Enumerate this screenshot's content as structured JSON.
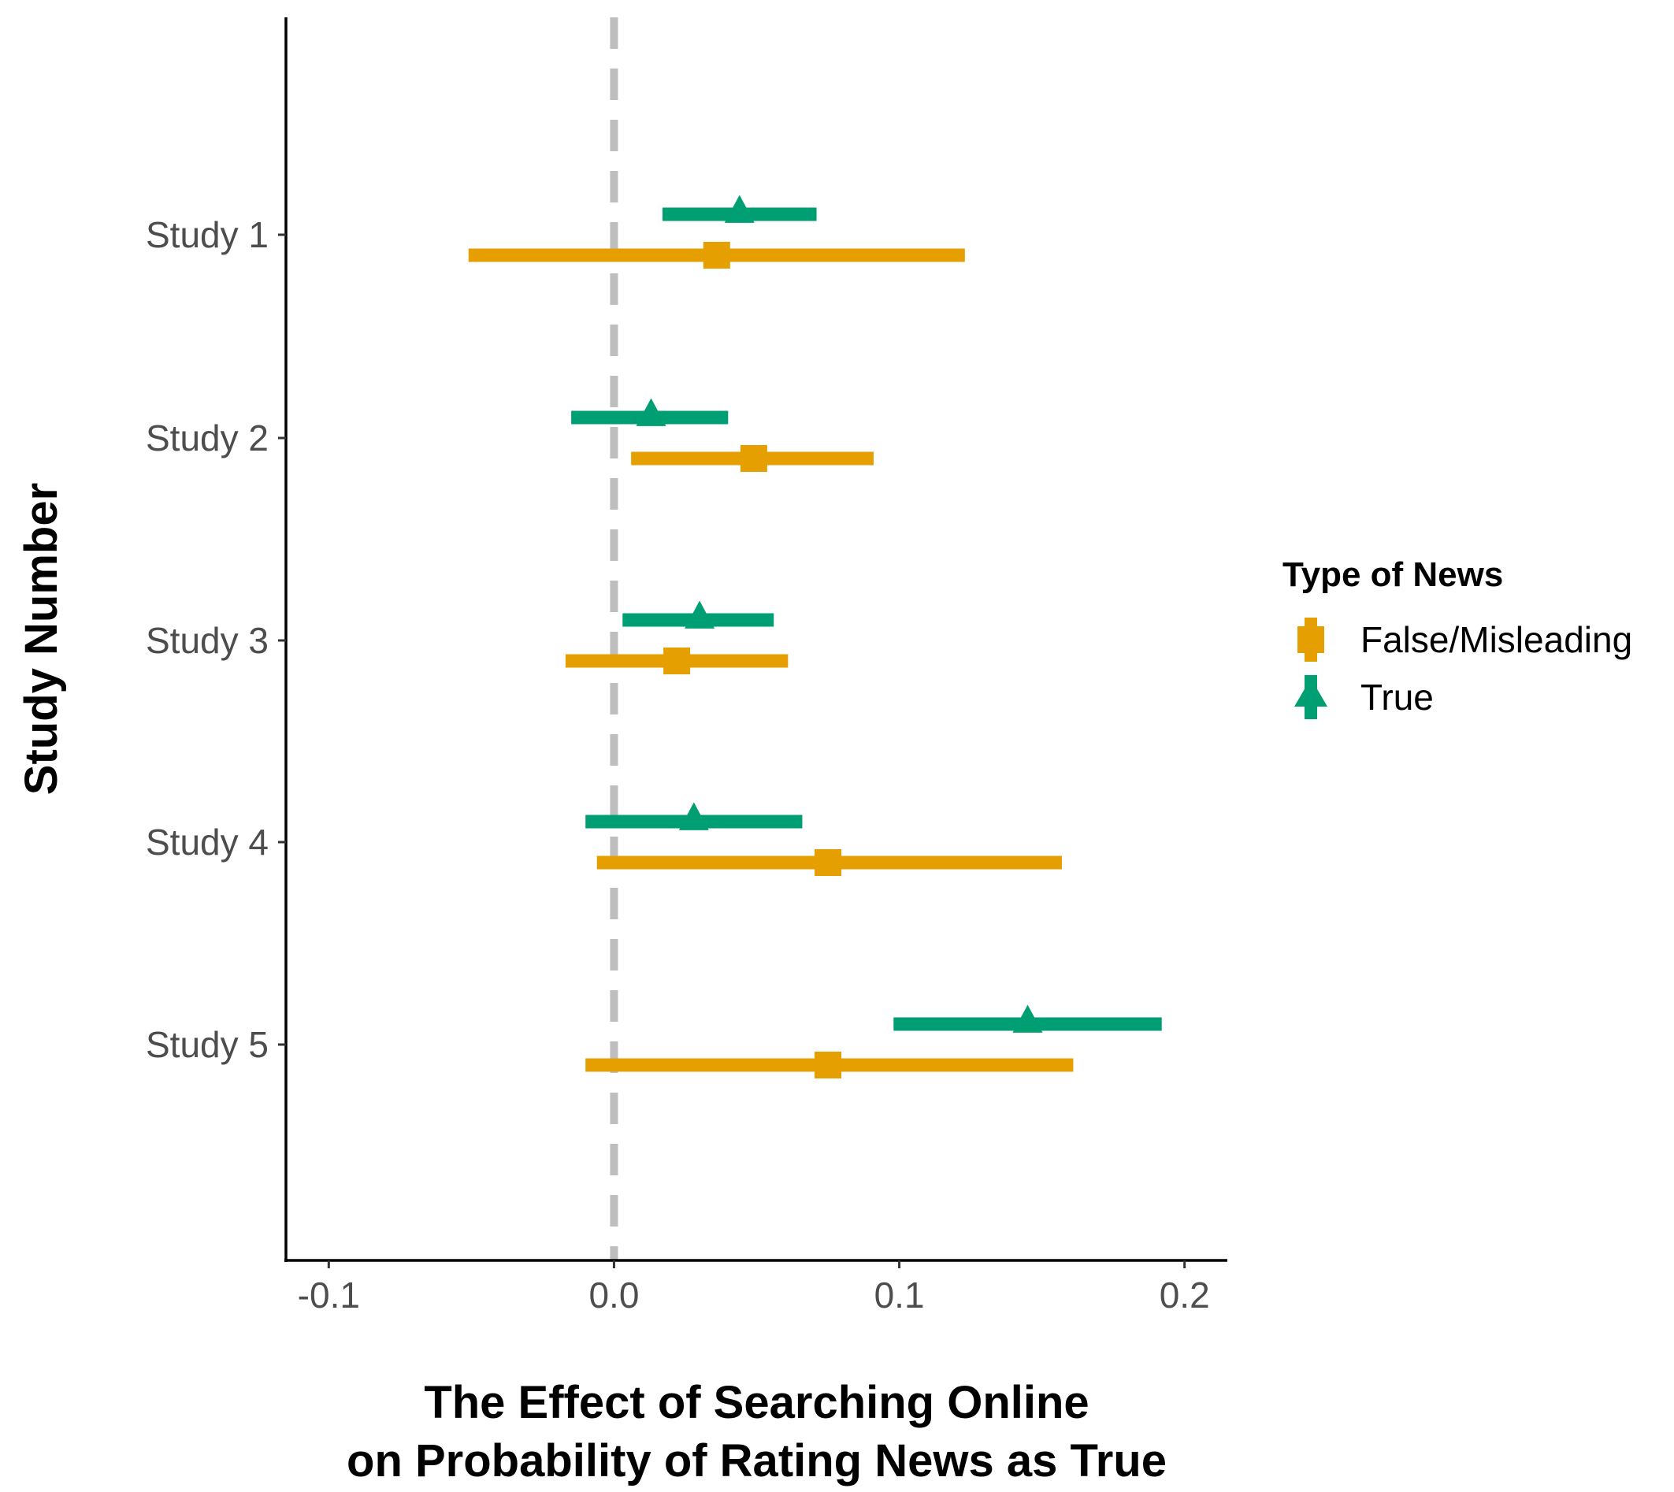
{
  "chart_data": {
    "type": "scatter",
    "subtype": "forest-plot",
    "title": "",
    "xlabel_lines": [
      "The Effect of Searching Online",
      "on Probability of Rating News as True"
    ],
    "ylabel": "Study Number",
    "categories": [
      "Study 1",
      "Study 2",
      "Study 3",
      "Study 4",
      "Study 5"
    ],
    "xlim": [
      -0.115,
      0.215
    ],
    "x_ticks": [
      -0.1,
      0.0,
      0.1,
      0.2
    ],
    "x_tick_labels": [
      "-0.1",
      "0.0",
      "0.1",
      "0.2"
    ],
    "reference_line": {
      "x": 0,
      "style": "dashed",
      "color": "#bebebe"
    },
    "grid": false,
    "legend": {
      "title": "Type of News",
      "position": "right"
    },
    "series": [
      {
        "name": "False/Misleading",
        "color": "#E69F00",
        "marker": "square",
        "estimates": [
          0.036,
          0.049,
          0.022,
          0.075,
          0.075
        ],
        "ci_low": [
          -0.051,
          0.006,
          -0.017,
          -0.006,
          -0.01
        ],
        "ci_high": [
          0.123,
          0.091,
          0.061,
          0.157,
          0.161
        ]
      },
      {
        "name": "True",
        "color": "#009E73",
        "marker": "triangle",
        "estimates": [
          0.044,
          0.013,
          0.03,
          0.028,
          0.145
        ],
        "ci_low": [
          0.017,
          -0.015,
          0.003,
          -0.01,
          0.098
        ],
        "ci_high": [
          0.071,
          0.04,
          0.056,
          0.066,
          0.192
        ]
      }
    ]
  }
}
